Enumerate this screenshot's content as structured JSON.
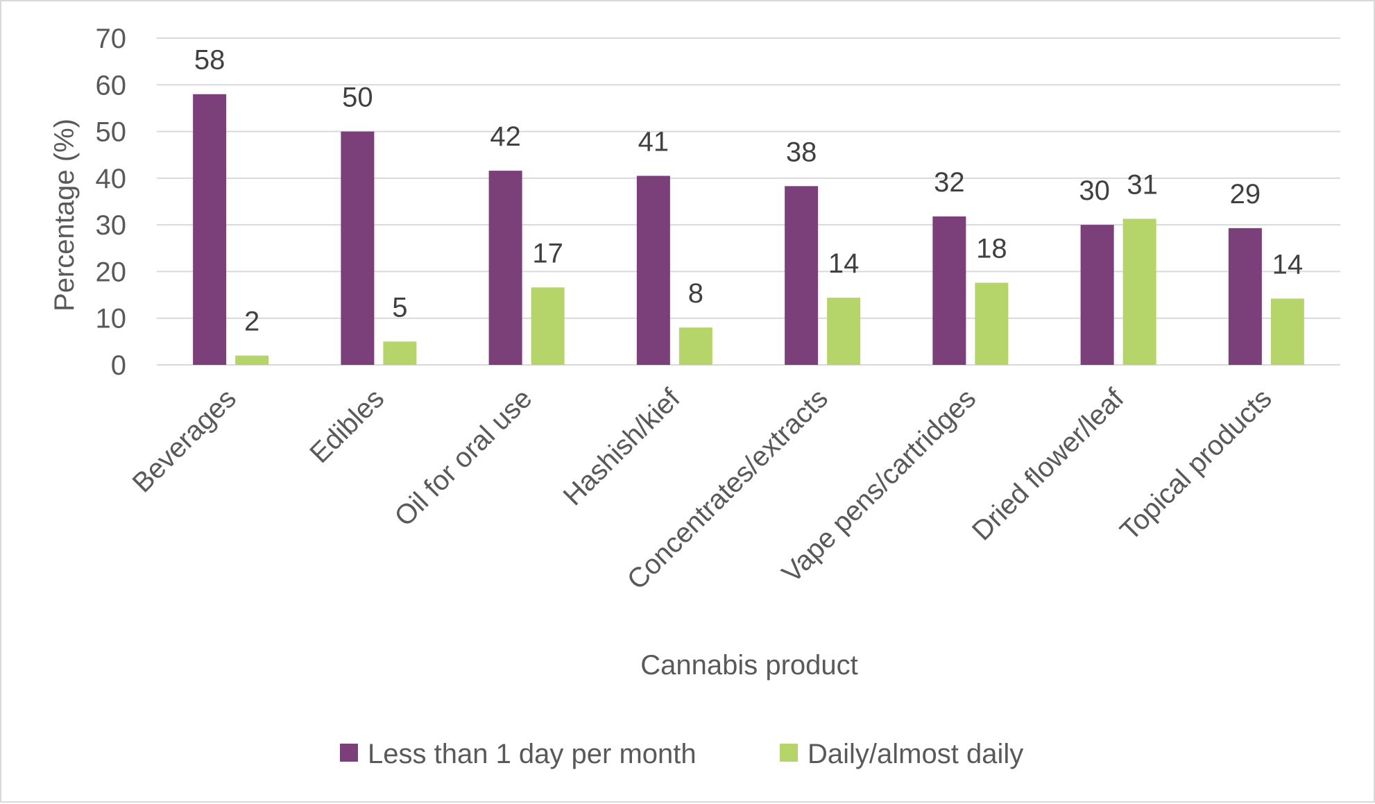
{
  "chart_data": {
    "type": "bar",
    "title": "",
    "xlabel": "Cannabis product",
    "ylabel": "Percentage (%)",
    "ylim": [
      0,
      70
    ],
    "yticks": [
      0,
      10,
      20,
      30,
      40,
      50,
      60,
      70
    ],
    "grid": true,
    "legend_position": "bottom",
    "categories": [
      "Beverages",
      "Edibles",
      "Oil for oral use",
      "Hashish/kief",
      "Concentrates/extracts",
      "Vape pens/cartridges",
      "Dried flower/leaf",
      "Topical products"
    ],
    "series": [
      {
        "name": "Less than 1 day per month",
        "color": "#7b3f7a",
        "values": [
          58,
          50,
          42,
          41,
          38,
          32,
          30,
          29
        ],
        "bar_values": [
          58,
          50,
          41.6,
          40.5,
          38.3,
          31.8,
          30,
          29.3
        ]
      },
      {
        "name": "Daily/almost daily",
        "color": "#b5d56a",
        "values": [
          2,
          5,
          17,
          8,
          14,
          18,
          31,
          14
        ],
        "bar_values": [
          2,
          5,
          16.6,
          8,
          14.4,
          17.6,
          31.3,
          14.2
        ]
      }
    ],
    "gridline_color": "#d9d9d9"
  }
}
